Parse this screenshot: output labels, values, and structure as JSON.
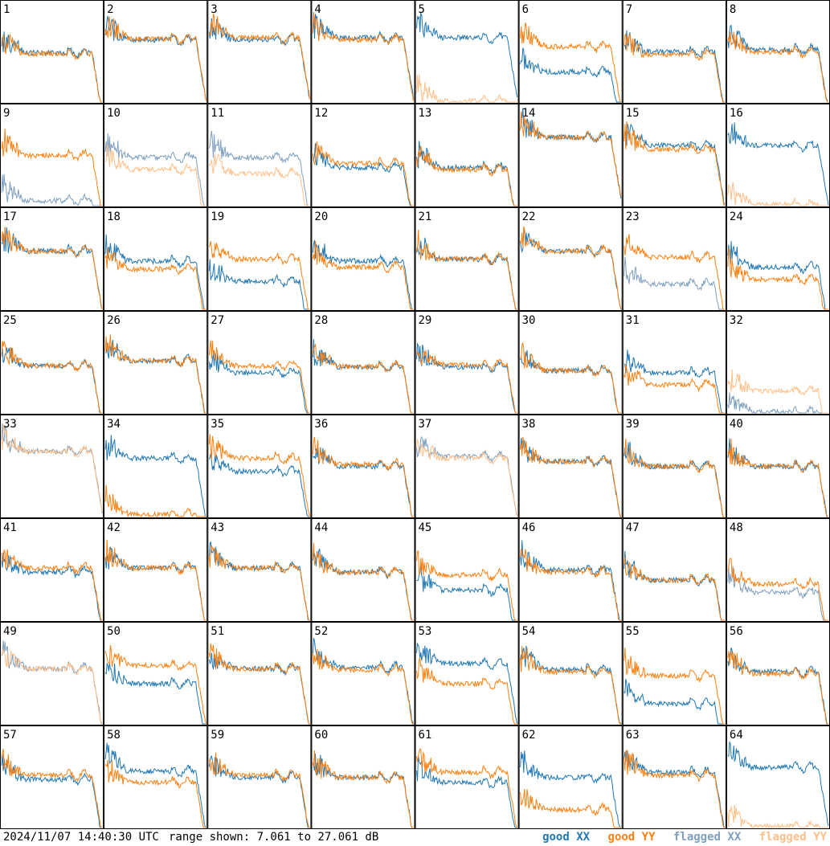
{
  "footer": {
    "timestamp": "2024/11/07 14:40:30 UTC",
    "range_text": "range shown: 7.061 to 27.061 dB"
  },
  "colors": {
    "good_xx": "#1f77b4",
    "good_yy": "#ff7f0e",
    "flagged_xx": "#7f9fbf",
    "flagged_yy": "#ffbf87"
  },
  "chart_data": {
    "type": "line",
    "layout": "8x8 small-multiples",
    "ylim": [
      7.061,
      27.061
    ],
    "legend": [
      {
        "name": "good XX",
        "color": "#1f77b4"
      },
      {
        "name": "good YY",
        "color": "#ff7f0e"
      },
      {
        "name": "flagged XX",
        "color": "#7f9fbf"
      },
      {
        "name": "flagged YY",
        "color": "#ffbf87"
      }
    ],
    "legend_position": "bottom-right",
    "panels": [
      {
        "label": "1",
        "xx": "good",
        "yy": "good",
        "xx_level": 0.49,
        "yy_level": 0.48
      },
      {
        "label": "2",
        "xx": "good",
        "yy": "good",
        "xx_level": 0.62,
        "yy_level": 0.63
      },
      {
        "label": "3",
        "xx": "good",
        "yy": "good",
        "xx_level": 0.62,
        "yy_level": 0.64
      },
      {
        "label": "4",
        "xx": "good",
        "yy": "good",
        "xx_level": 0.64,
        "yy_level": 0.62
      },
      {
        "label": "5",
        "xx": "good",
        "yy": "flagged",
        "xx_level": 0.64,
        "yy_level": 0.01
      },
      {
        "label": "6",
        "xx": "good",
        "yy": "good",
        "xx_level": 0.3,
        "yy_level": 0.55
      },
      {
        "label": "7",
        "xx": "good",
        "yy": "good",
        "xx_level": 0.5,
        "yy_level": 0.47
      },
      {
        "label": "8",
        "xx": "good",
        "yy": "good",
        "xx_level": 0.52,
        "yy_level": 0.5
      },
      {
        "label": "9",
        "xx": "flagged",
        "yy": "good",
        "xx_level": 0.05,
        "yy_level": 0.5
      },
      {
        "label": "10",
        "xx": "flagged",
        "yy": "flagged",
        "xx_level": 0.48,
        "yy_level": 0.36
      },
      {
        "label": "11",
        "xx": "flagged",
        "yy": "flagged",
        "xx_level": 0.48,
        "yy_level": 0.32
      },
      {
        "label": "12",
        "xx": "good",
        "yy": "good",
        "xx_level": 0.38,
        "yy_level": 0.42
      },
      {
        "label": "13",
        "xx": "good",
        "yy": "good",
        "xx_level": 0.38,
        "yy_level": 0.36
      },
      {
        "label": "14",
        "xx": "good",
        "yy": "good",
        "xx_level": 0.68,
        "yy_level": 0.68
      },
      {
        "label": "15",
        "xx": "good",
        "yy": "good",
        "xx_level": 0.6,
        "yy_level": 0.56
      },
      {
        "label": "16",
        "xx": "good",
        "yy": "flagged",
        "xx_level": 0.6,
        "yy_level": 0.01
      },
      {
        "label": "17",
        "xx": "good",
        "yy": "good",
        "xx_level": 0.58,
        "yy_level": 0.58
      },
      {
        "label": "18",
        "xx": "good",
        "yy": "good",
        "xx_level": 0.48,
        "yy_level": 0.4
      },
      {
        "label": "19",
        "xx": "good",
        "yy": "good",
        "xx_level": 0.28,
        "yy_level": 0.5
      },
      {
        "label": "20",
        "xx": "good",
        "yy": "good",
        "xx_level": 0.48,
        "yy_level": 0.42
      },
      {
        "label": "21",
        "xx": "good",
        "yy": "good",
        "xx_level": 0.5,
        "yy_level": 0.5
      },
      {
        "label": "22",
        "xx": "good",
        "yy": "good",
        "xx_level": 0.58,
        "yy_level": 0.58
      },
      {
        "label": "23",
        "xx": "flagged",
        "yy": "good",
        "xx_level": 0.25,
        "yy_level": 0.52
      },
      {
        "label": "24",
        "xx": "good",
        "yy": "good",
        "xx_level": 0.42,
        "yy_level": 0.3
      },
      {
        "label": "25",
        "xx": "good",
        "yy": "good",
        "xx_level": 0.47,
        "yy_level": 0.47
      },
      {
        "label": "26",
        "xx": "good",
        "yy": "good",
        "xx_level": 0.52,
        "yy_level": 0.52
      },
      {
        "label": "27",
        "xx": "good",
        "yy": "good",
        "xx_level": 0.4,
        "yy_level": 0.47
      },
      {
        "label": "28",
        "xx": "good",
        "yy": "good",
        "xx_level": 0.46,
        "yy_level": 0.46
      },
      {
        "label": "29",
        "xx": "good",
        "yy": "good",
        "xx_level": 0.46,
        "yy_level": 0.48
      },
      {
        "label": "30",
        "xx": "good",
        "yy": "good",
        "xx_level": 0.42,
        "yy_level": 0.42
      },
      {
        "label": "31",
        "xx": "good",
        "yy": "good",
        "xx_level": 0.4,
        "yy_level": 0.28
      },
      {
        "label": "32",
        "xx": "flagged",
        "yy": "flagged",
        "xx_level": 0.01,
        "yy_level": 0.22
      },
      {
        "label": "33",
        "xx": "flagged",
        "yy": "flagged",
        "xx_level": 0.65,
        "yy_level": 0.65
      },
      {
        "label": "34",
        "xx": "good",
        "yy": "good",
        "xx_level": 0.58,
        "yy_level": 0.02
      },
      {
        "label": "35",
        "xx": "good",
        "yy": "good",
        "xx_level": 0.45,
        "yy_level": 0.58
      },
      {
        "label": "36",
        "xx": "good",
        "yy": "good",
        "xx_level": 0.5,
        "yy_level": 0.52
      },
      {
        "label": "37",
        "xx": "flagged",
        "yy": "flagged",
        "xx_level": 0.6,
        "yy_level": 0.58
      },
      {
        "label": "38",
        "xx": "good",
        "yy": "good",
        "xx_level": 0.55,
        "yy_level": 0.55
      },
      {
        "label": "39",
        "xx": "good",
        "yy": "good",
        "xx_level": 0.5,
        "yy_level": 0.5
      },
      {
        "label": "40",
        "xx": "good",
        "yy": "good",
        "xx_level": 0.5,
        "yy_level": 0.5
      },
      {
        "label": "41",
        "xx": "good",
        "yy": "good",
        "xx_level": 0.48,
        "yy_level": 0.52
      },
      {
        "label": "42",
        "xx": "good",
        "yy": "good",
        "xx_level": 0.52,
        "yy_level": 0.52
      },
      {
        "label": "43",
        "xx": "good",
        "yy": "good",
        "xx_level": 0.52,
        "yy_level": 0.52
      },
      {
        "label": "44",
        "xx": "good",
        "yy": "good",
        "xx_level": 0.48,
        "yy_level": 0.48
      },
      {
        "label": "45",
        "xx": "good",
        "yy": "good",
        "xx_level": 0.3,
        "yy_level": 0.45
      },
      {
        "label": "46",
        "xx": "good",
        "yy": "good",
        "xx_level": 0.5,
        "yy_level": 0.48
      },
      {
        "label": "47",
        "xx": "good",
        "yy": "good",
        "xx_level": 0.4,
        "yy_level": 0.4
      },
      {
        "label": "48",
        "xx": "flagged",
        "yy": "good",
        "xx_level": 0.28,
        "yy_level": 0.36
      },
      {
        "label": "49",
        "xx": "flagged",
        "yy": "flagged",
        "xx_level": 0.55,
        "yy_level": 0.55
      },
      {
        "label": "50",
        "xx": "good",
        "yy": "good",
        "xx_level": 0.4,
        "yy_level": 0.58
      },
      {
        "label": "51",
        "xx": "good",
        "yy": "good",
        "xx_level": 0.55,
        "yy_level": 0.55
      },
      {
        "label": "52",
        "xx": "good",
        "yy": "good",
        "xx_level": 0.56,
        "yy_level": 0.54
      },
      {
        "label": "53",
        "xx": "good",
        "yy": "good",
        "xx_level": 0.6,
        "yy_level": 0.4
      },
      {
        "label": "54",
        "xx": "good",
        "yy": "good",
        "xx_level": 0.54,
        "yy_level": 0.52
      },
      {
        "label": "55",
        "xx": "good",
        "yy": "good",
        "xx_level": 0.2,
        "yy_level": 0.48
      },
      {
        "label": "56",
        "xx": "good",
        "yy": "good",
        "xx_level": 0.52,
        "yy_level": 0.5
      },
      {
        "label": "57",
        "xx": "good",
        "yy": "good",
        "xx_level": 0.48,
        "yy_level": 0.52
      },
      {
        "label": "58",
        "xx": "good",
        "yy": "good",
        "xx_level": 0.56,
        "yy_level": 0.45
      },
      {
        "label": "59",
        "xx": "good",
        "yy": "good",
        "xx_level": 0.5,
        "yy_level": 0.52
      },
      {
        "label": "60",
        "xx": "good",
        "yy": "good",
        "xx_level": 0.5,
        "yy_level": 0.5
      },
      {
        "label": "61",
        "xx": "good",
        "yy": "good",
        "xx_level": 0.45,
        "yy_level": 0.55
      },
      {
        "label": "62",
        "xx": "good",
        "yy": "good",
        "xx_level": 0.5,
        "yy_level": 0.18
      },
      {
        "label": "63",
        "xx": "good",
        "yy": "good",
        "xx_level": 0.55,
        "yy_level": 0.52
      },
      {
        "label": "64",
        "xx": "good",
        "yy": "flagged",
        "xx_level": 0.6,
        "yy_level": 0.01
      }
    ]
  }
}
